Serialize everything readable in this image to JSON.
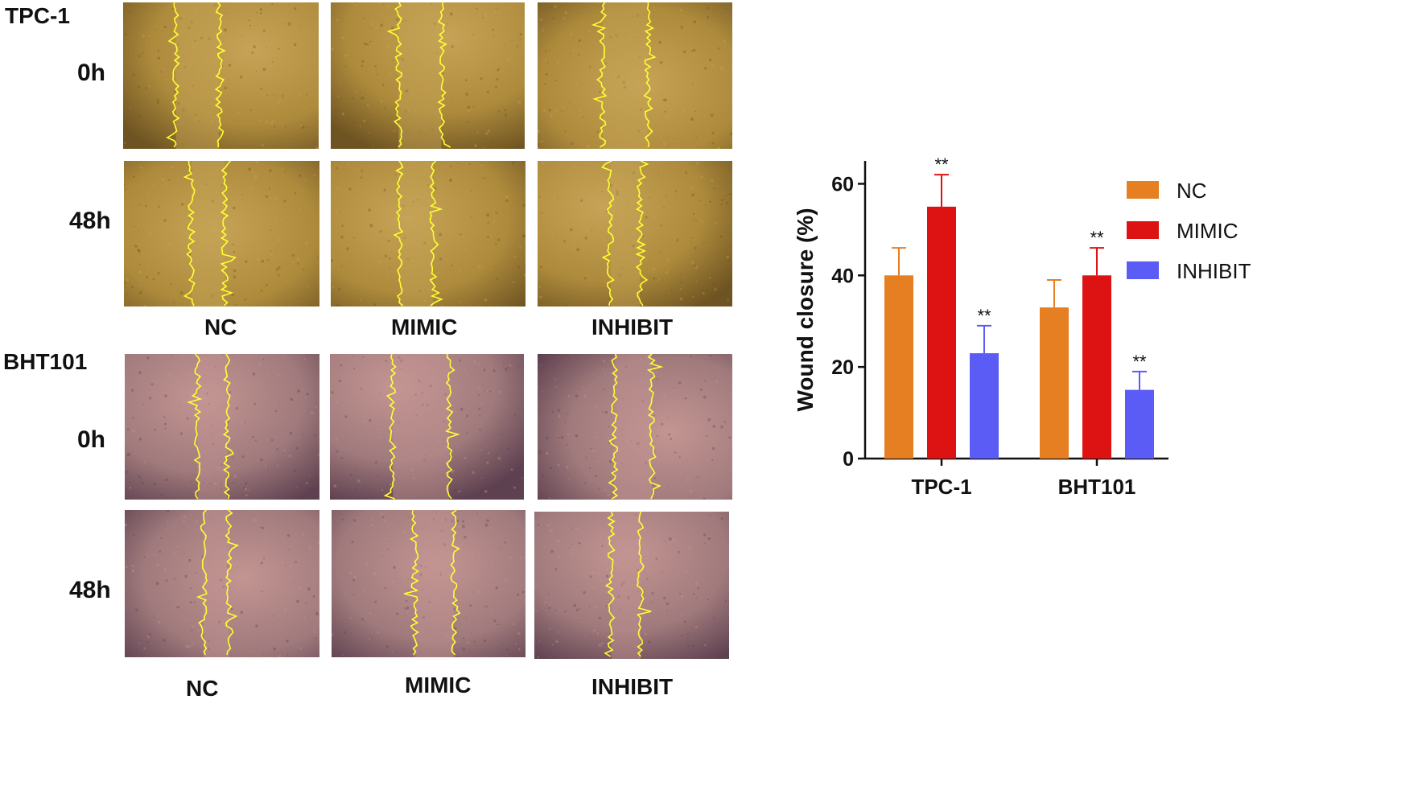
{
  "figure": {
    "groups": [
      {
        "name": "TPC-1",
        "rows": [
          "0h",
          "48h"
        ],
        "columns": [
          "NC",
          "MIMIC",
          "INHIBIT"
        ],
        "colors": {
          "base": "#ae8b3c",
          "light": "#c6a356",
          "dark": "#6e5422"
        }
      },
      {
        "name": "BHT101",
        "rows": [
          "0h",
          "48h"
        ],
        "columns": [
          "NC",
          "MIMIC",
          "INHIBIT"
        ],
        "colors": {
          "base": "#a07a7c",
          "light": "#c39592",
          "dark": "#5e4150"
        }
      }
    ],
    "wound_edge_color": "#ffff33"
  },
  "chart_data": {
    "type": "bar",
    "categories": [
      "TPC-1",
      "BHT101"
    ],
    "series": [
      {
        "name": "NC",
        "color": "#e57f22",
        "values": [
          40,
          33
        ],
        "errors": [
          6,
          6
        ],
        "significance": [
          "",
          ""
        ]
      },
      {
        "name": "MIMIC",
        "color": "#dd1212",
        "values": [
          55,
          40
        ],
        "errors": [
          7,
          6
        ],
        "significance": [
          "**",
          "**"
        ]
      },
      {
        "name": "INHIBIT",
        "color": "#5b5bf5",
        "values": [
          23,
          15
        ],
        "errors": [
          6,
          4
        ],
        "significance": [
          "**",
          "**"
        ]
      }
    ],
    "ylabel": "Wound closure (%)",
    "ylim": [
      0,
      65
    ],
    "yticks": [
      0,
      20,
      40,
      60
    ],
    "legend_position": "right",
    "grid": false
  }
}
